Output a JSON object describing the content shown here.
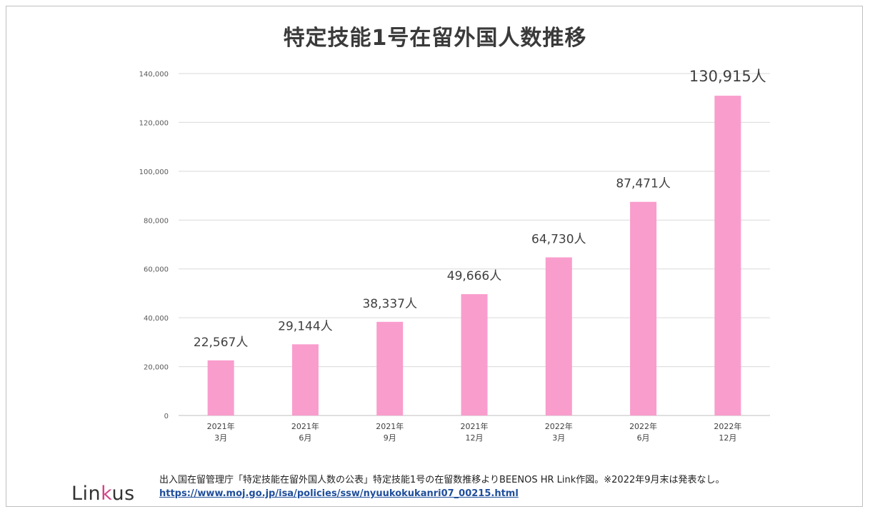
{
  "chart_data": {
    "type": "bar",
    "title": "特定技能1号在留外国人数推移",
    "categories": [
      {
        "year": "2021年",
        "month": "3月"
      },
      {
        "year": "2021年",
        "month": "6月"
      },
      {
        "year": "2021年",
        "month": "9月"
      },
      {
        "year": "2021年",
        "month": "12月"
      },
      {
        "year": "2022年",
        "month": "3月"
      },
      {
        "year": "2022年",
        "month": "6月"
      },
      {
        "year": "2022年",
        "month": "12月"
      }
    ],
    "values": [
      22567,
      29144,
      38337,
      49666,
      64730,
      87471,
      130915
    ],
    "data_labels": [
      "22,567人",
      "29,144人",
      "38,337人",
      "49,666人",
      "64,730人",
      "87,471人",
      "130,915人"
    ],
    "ylim": [
      0,
      140000
    ],
    "yticks": [
      0,
      20000,
      40000,
      60000,
      80000,
      100000,
      120000,
      140000
    ],
    "ytick_labels": [
      "0",
      "20,000",
      "40,000",
      "60,000",
      "80,000",
      "100,000",
      "120,000",
      "140,000"
    ],
    "xlabel": "",
    "ylabel": "",
    "grid": true,
    "bar_color": "#f99dcd"
  },
  "footer": {
    "source": "出入国在留管理庁「特定技能在留外国人数の公表」特定技能1号の在留数推移よりBEENOS HR Link作図。※2022年9月末は発表なし。",
    "url": "https://www.moj.go.jp/isa/policies/ssw/nyuukokukanri07_00215.html"
  },
  "logo": {
    "part1": "Lin",
    "part2": "k",
    "part3": "us"
  }
}
